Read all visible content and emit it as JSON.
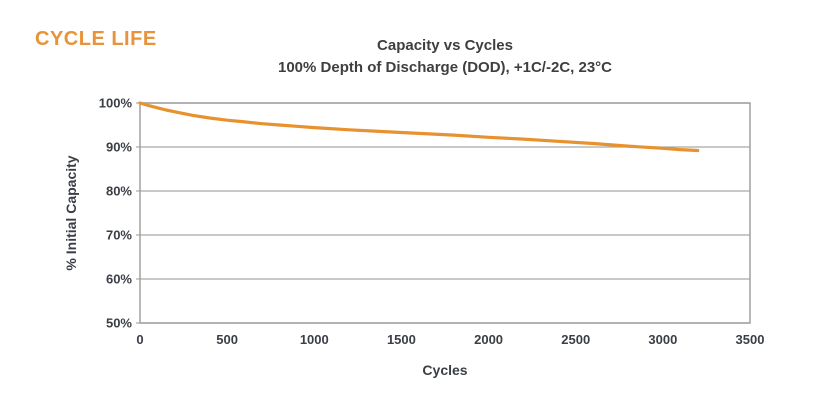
{
  "page": {
    "heading": "CYCLE LIFE",
    "heading_color": "#E8923A",
    "background": "#FFFFFF"
  },
  "chart_data": {
    "type": "line",
    "title": "Capacity vs Cycles",
    "subtitle": "100% Depth of Discharge (DOD), +1C/-2C, 23°C",
    "xlabel": "Cycles",
    "ylabel": "% Initial Capacity",
    "xlim": [
      0,
      3500
    ],
    "ylim": [
      50,
      100
    ],
    "x_ticks": [
      0,
      500,
      1000,
      1500,
      2000,
      2500,
      3000,
      3500
    ],
    "x_tick_labels": [
      "0",
      "500",
      "1000",
      "1500",
      "2000",
      "2500",
      "3000",
      "3500"
    ],
    "y_ticks": [
      100,
      90,
      80,
      70,
      60,
      50
    ],
    "y_tick_labels": [
      "100%",
      "90%",
      "80%",
      "70%",
      "60%",
      "50%"
    ],
    "grid": true,
    "legend": false,
    "line_color": "#E8912F",
    "grid_color": "#A9A9A9",
    "axis_color": "#9A9A9A",
    "x": [
      0,
      50,
      100,
      150,
      200,
      300,
      400,
      500,
      600,
      700,
      800,
      900,
      1000,
      1200,
      1400,
      1600,
      1800,
      2000,
      2200,
      2400,
      2600,
      2800,
      3000,
      3100,
      3200
    ],
    "y": [
      100,
      99.4,
      98.9,
      98.4,
      98.0,
      97.2,
      96.6,
      96.1,
      95.7,
      95.3,
      95.0,
      94.7,
      94.4,
      93.9,
      93.5,
      93.1,
      92.7,
      92.2,
      91.8,
      91.3,
      90.8,
      90.2,
      89.7,
      89.4,
      89.2
    ]
  }
}
